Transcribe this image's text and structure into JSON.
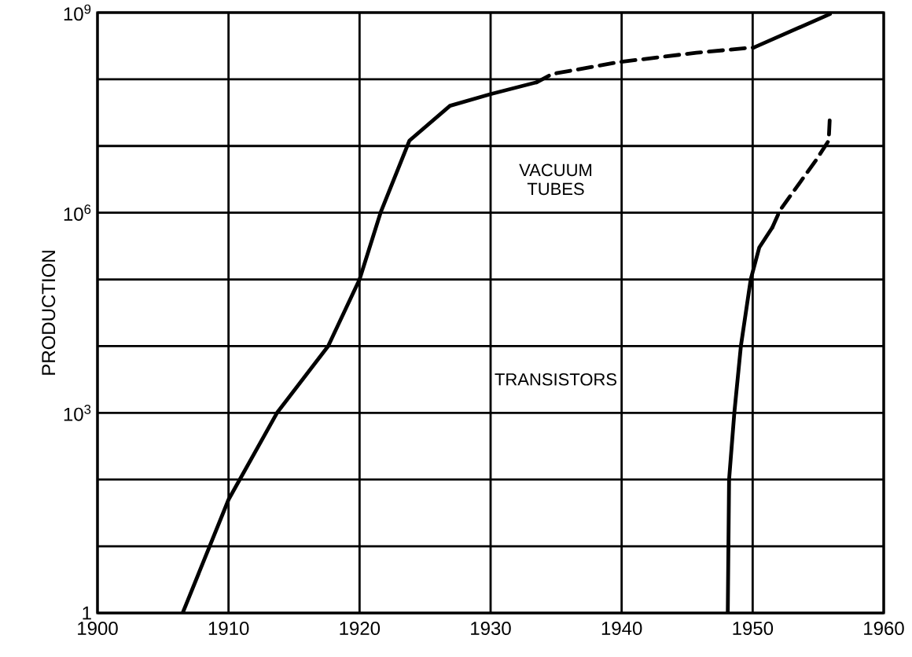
{
  "chart_data": {
    "type": "line",
    "ylabel": "PRODUCTION",
    "log": "y",
    "grid": true,
    "marker": "none",
    "xlim": [
      1900,
      1960
    ],
    "xticks": [
      1900,
      1910,
      1920,
      1930,
      1940,
      1950,
      1960
    ],
    "ylim": [
      1,
      1000000000
    ],
    "yticks": [
      1,
      {
        "value": 10,
        "label": null
      },
      {
        "value": 100,
        "label": null
      },
      {
        "value": 1000,
        "label": "10$^{3}$"
      },
      {
        "value": 10000,
        "label": null
      },
      {
        "value": 100000,
        "label": null
      },
      {
        "value": 1000000,
        "label": "10$^{6}$"
      },
      {
        "value": 10000000,
        "label": null
      },
      {
        "value": 100000000,
        "label": null
      },
      {
        "value": 1000000000,
        "label": "10$^{9}$"
      }
    ],
    "series": [
      {
        "color": "#000000",
        "line_style": "solid",
        "x": [
          1906.5,
          1910,
          1913.7,
          1917.6,
          1920,
          1921.6,
          1923.8,
          1926.9,
          1930,
          1933.5
        ],
        "values": [
          1,
          50,
          1000,
          10000,
          100000,
          1000000,
          12000000,
          40000000,
          60000000,
          90000000
        ]
      },
      {
        "color": "#000000",
        "line_style": "dashed",
        "x": [
          1933.5,
          1934.7,
          1939.7,
          1945.7,
          1950.1
        ],
        "values": [
          90000000,
          120000000,
          180000000,
          250000000,
          300000000
        ]
      },
      {
        "color": "#000000",
        "line_style": "solid",
        "x": [
          1950.1,
          1955.9
        ],
        "values": [
          300000000,
          950000000
        ]
      },
      {
        "color": "#000000",
        "line_style": "solid",
        "x": [
          1948.1,
          1948.2,
          1948.6,
          1949.1,
          1949.85,
          1950.5,
          1951.5
        ],
        "values": [
          1,
          100,
          1000,
          10000,
          100000,
          300000,
          600000
        ]
      },
      {
        "color": "#000000",
        "line_style": "dashed",
        "x": [
          1951.5,
          1952.1,
          1954.8,
          1955.8,
          1955.9
        ],
        "values": [
          600000,
          1100000,
          6000000,
          12000000,
          30000000
        ]
      }
    ],
    "annotations": [
      "VACUUM TUBES",
      "TRANSISTORS"
    ]
  }
}
